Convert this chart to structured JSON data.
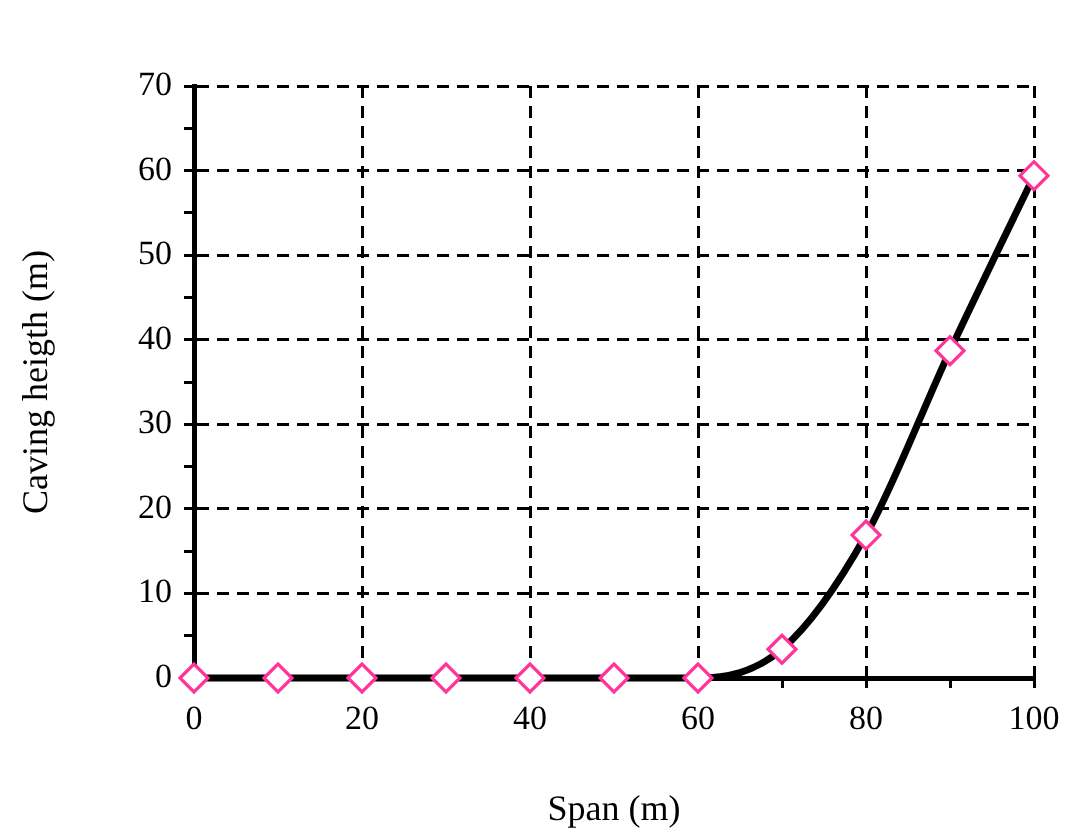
{
  "chart_data": {
    "type": "line",
    "xlabel": "Span (m)",
    "ylabel": "Caving heigth (m)",
    "x": [
      0,
      10,
      20,
      30,
      40,
      50,
      60,
      70,
      80,
      90,
      100
    ],
    "series": [
      {
        "type": "line",
        "color": "#000000",
        "marker": "none",
        "values": [
          0,
          0,
          0,
          0,
          0,
          0,
          0,
          3.4,
          16.9,
          38.7,
          59.4
        ]
      },
      {
        "type": "scatter",
        "color": "#ff3399",
        "marker": "diamond",
        "values": [
          0,
          0,
          0,
          0,
          0,
          0,
          0,
          3.4,
          16.9,
          38.7,
          59.4
        ]
      }
    ],
    "xlim": [
      0,
      100
    ],
    "ylim": [
      0,
      70
    ],
    "xticks": [
      0,
      {
        "value": 10,
        "label": null
      },
      20,
      {
        "value": 30,
        "label": null
      },
      40,
      {
        "value": 50,
        "label": null
      },
      60,
      {
        "value": 70,
        "label": null
      },
      80,
      {
        "value": 90,
        "label": null
      },
      100
    ],
    "yticks": [
      0,
      {
        "value": 5,
        "label": null
      },
      10,
      {
        "value": 15,
        "label": null
      },
      20,
      {
        "value": 25,
        "label": null
      },
      30,
      {
        "value": 35,
        "label": null
      },
      40,
      {
        "value": 45,
        "label": null
      },
      50,
      {
        "value": 55,
        "label": null
      },
      60,
      {
        "value": 65,
        "label": null
      },
      70
    ],
    "grid": true,
    "legend": false
  }
}
